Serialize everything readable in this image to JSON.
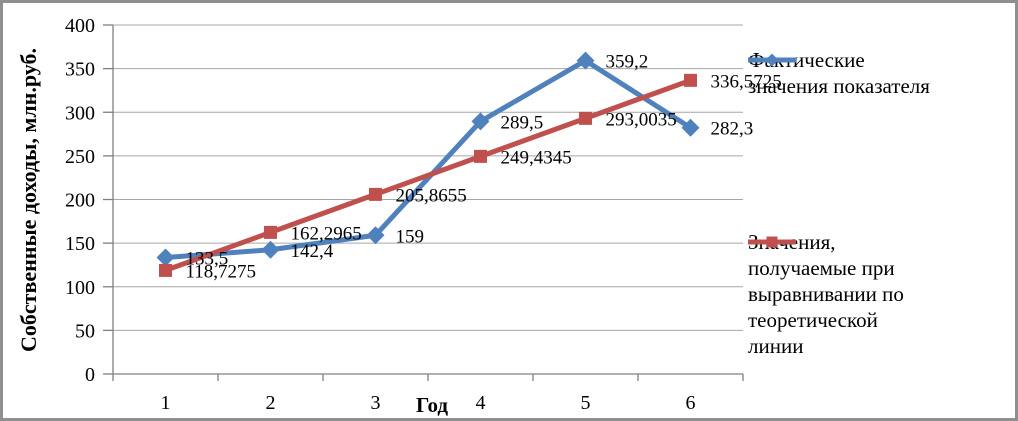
{
  "frame": {
    "background": "#ffffff",
    "border_color": "#8f8f8f"
  },
  "chart_data": {
    "type": "line",
    "title": "",
    "xlabel": "Год",
    "ylabel": "Собственные доходы, млн.руб.",
    "x": [
      1,
      2,
      3,
      4,
      5,
      6
    ],
    "xtick_labels": [
      "1",
      "2",
      "3",
      "4",
      "5",
      "6"
    ],
    "ylim": [
      0,
      400
    ],
    "ytick_interval": 50,
    "yticks": [
      400,
      350,
      300,
      250,
      200,
      150,
      100,
      50,
      0
    ],
    "grid": "horizontal",
    "legend_position": "right",
    "axis_color": "#808080",
    "grid_color": "#a6a6a6",
    "text_color": "#000000",
    "series": [
      {
        "name": "Фактические значения показателя",
        "name_lines": [
          "Фактические",
          "значения показателя"
        ],
        "marker": "diamond",
        "color": "#4F81BD",
        "values": [
          133.5,
          142.4,
          159,
          289.5,
          359.2,
          282.3
        ],
        "point_labels": [
          "133,5",
          "142,4",
          "159",
          "289,5",
          "359,2",
          "282,3"
        ]
      },
      {
        "name": "Значения, получаемые при выравнивании по теоретической линии",
        "name_lines": [
          "Значения,",
          "получаемые при",
          "выравнивании по",
          "теоретической",
          "линии"
        ],
        "marker": "square",
        "color": "#C0504D",
        "values": [
          118.7275,
          162.2965,
          205.8655,
          249.4345,
          293.0035,
          336.5725
        ],
        "point_labels": [
          "118,7275",
          "162,2965",
          "205,8655",
          "249,4345",
          "293,0035",
          "336,5725"
        ]
      }
    ]
  }
}
